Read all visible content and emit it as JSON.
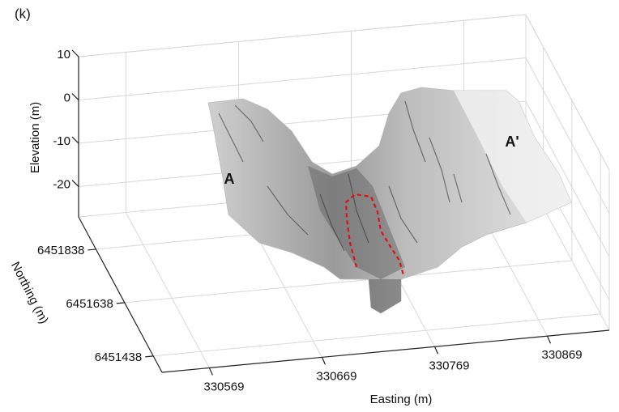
{
  "chart_data": {
    "type": "surface3d",
    "panel_label": "(k)",
    "xlabel": "Easting (m)",
    "ylabel": "Northing (m)",
    "zlabel": "Elevation (m)",
    "xlim": [
      330527,
      330924
    ],
    "xticks": [
      330569,
      330669,
      330769,
      330869
    ],
    "ylim": [
      6451377,
      6451959
    ],
    "yticks": [
      6451438,
      6451638,
      6451838
    ],
    "zlim": [
      -27,
      10
    ],
    "zticks": [
      -20,
      -10,
      0,
      10
    ],
    "grid": true,
    "annotations": [
      "A",
      "A'"
    ]
  }
}
